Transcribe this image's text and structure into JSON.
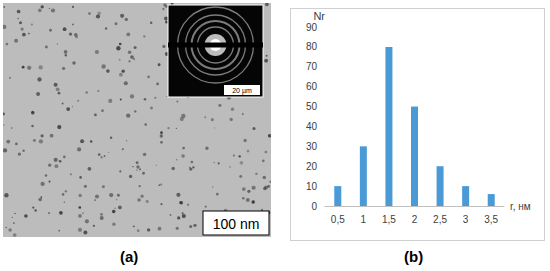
{
  "panel_labels": [
    "(a)",
    "(b)"
  ],
  "micrograph": {
    "scale_bar": "100 nm",
    "inset_scale_bar": "20 µm"
  },
  "chart_data": {
    "type": "bar",
    "y_label": "Nr",
    "x_label": "r, нм",
    "categories": [
      "0,5",
      "1",
      "1,5",
      "2",
      "2,5",
      "3",
      "3,5"
    ],
    "values": [
      10,
      30,
      80,
      50,
      20,
      10,
      6
    ],
    "color": "#4a9ad6",
    "ylim": [
      0,
      90
    ],
    "yticks": [
      0,
      10,
      20,
      30,
      40,
      50,
      60,
      70,
      80,
      90
    ],
    "grid": false
  }
}
